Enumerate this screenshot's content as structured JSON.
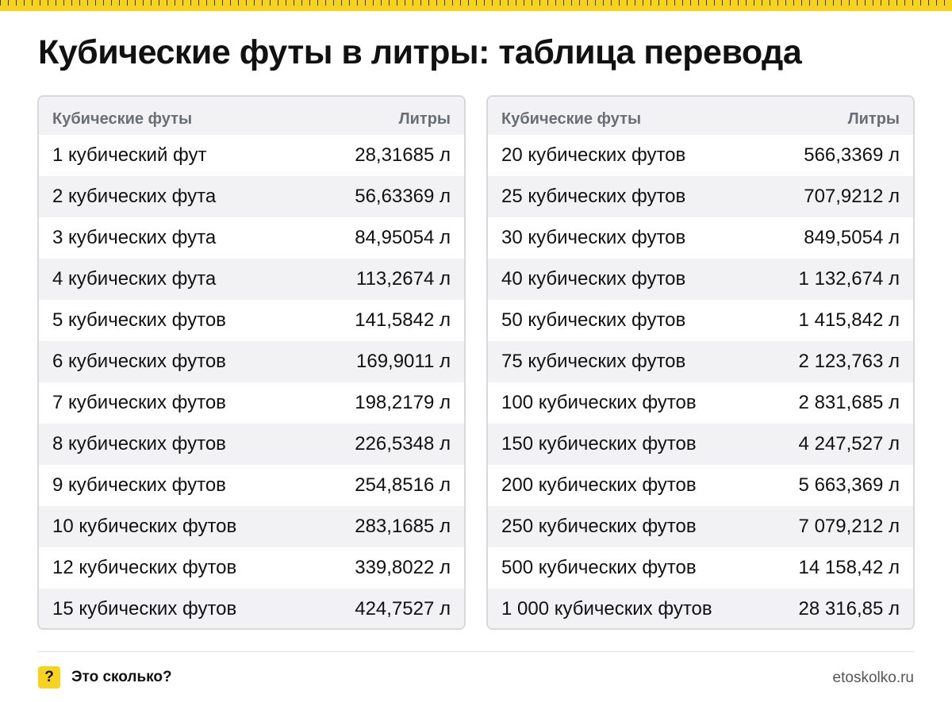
{
  "title": "Кубические футы в литры: таблица перевода",
  "tables": [
    {
      "header": {
        "left": "Кубические футы",
        "right": "Литры"
      },
      "rows": [
        {
          "label": "1 кубический фут",
          "value": "28,31685 л"
        },
        {
          "label": "2 кубических фута",
          "value": "56,63369 л"
        },
        {
          "label": "3 кубических фута",
          "value": "84,95054 л"
        },
        {
          "label": "4 кубических фута",
          "value": "113,2674 л"
        },
        {
          "label": "5 кубических футов",
          "value": "141,5842 л"
        },
        {
          "label": "6 кубических футов",
          "value": "169,9011 л"
        },
        {
          "label": "7 кубических футов",
          "value": "198,2179 л"
        },
        {
          "label": "8 кубических футов",
          "value": "226,5348 л"
        },
        {
          "label": "9 кубических футов",
          "value": "254,8516 л"
        },
        {
          "label": "10 кубических футов",
          "value": "283,1685 л"
        },
        {
          "label": "12 кубических футов",
          "value": "339,8022 л"
        },
        {
          "label": "15 кубических футов",
          "value": "424,7527 л"
        }
      ]
    },
    {
      "header": {
        "left": "Кубические футы",
        "right": "Литры"
      },
      "rows": [
        {
          "label": "20 кубических футов",
          "value": "566,3369 л"
        },
        {
          "label": "25 кубических футов",
          "value": "707,9212 л"
        },
        {
          "label": "30 кубических футов",
          "value": "849,5054 л"
        },
        {
          "label": "40 кубических футов",
          "value": "1 132,674 л"
        },
        {
          "label": "50 кубических футов",
          "value": "1 415,842 л"
        },
        {
          "label": "75 кубических футов",
          "value": "2 123,763 л"
        },
        {
          "label": "100 кубических футов",
          "value": "2 831,685 л"
        },
        {
          "label": "150 кубических футов",
          "value": "4 247,527 л"
        },
        {
          "label": "200 кубических футов",
          "value": "5 663,369 л"
        },
        {
          "label": "250 кубических футов",
          "value": "7 079,212 л"
        },
        {
          "label": "500 кубических футов",
          "value": "14 158,42 л"
        },
        {
          "label": "1 000 кубических футов",
          "value": "28 316,85 л"
        }
      ]
    }
  ],
  "footer": {
    "icon": "question-mark-icon",
    "icon_glyph": "?",
    "brand": "Это сколько?",
    "site": "etoskolko.ru"
  },
  "colors": {
    "accent": "#f7d21e",
    "header_bg": "#f2f2f4",
    "border": "#d8d8dc",
    "header_text": "#6a6e76"
  }
}
